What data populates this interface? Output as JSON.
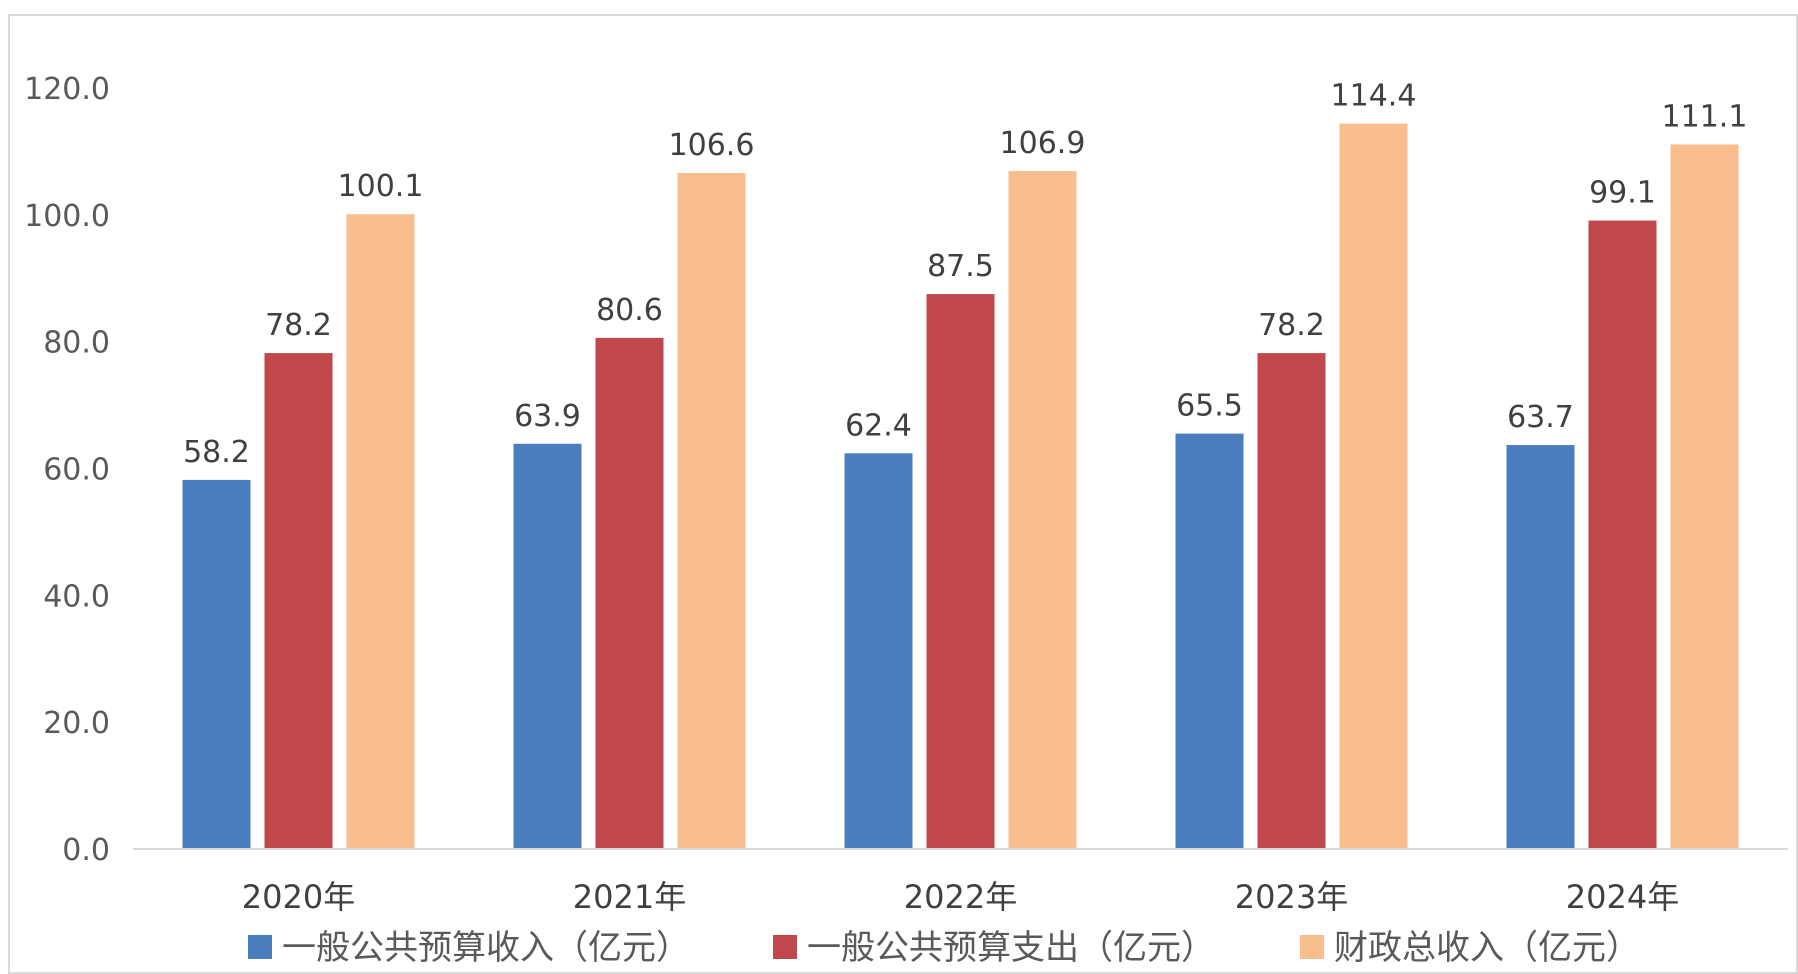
{
  "chart_data": {
    "type": "bar",
    "title": "",
    "xlabel": "",
    "ylabel": "",
    "categories": [
      "2020年",
      "2021年",
      "2022年",
      "2023年",
      "2024年"
    ],
    "series": [
      {
        "name": "一般公共预算收入（亿元）",
        "color": "#4a7ebf",
        "values": [
          58.2,
          63.9,
          62.4,
          65.5,
          63.7
        ]
      },
      {
        "name": "一般公共预算支出（亿元）",
        "color": "#c0474a",
        "values": [
          78.2,
          80.6,
          87.5,
          78.2,
          99.1
        ]
      },
      {
        "name": "财政总收入（亿元）",
        "color": "#f9be8e",
        "values": [
          100.1,
          106.6,
          106.9,
          114.4,
          111.1
        ]
      }
    ],
    "yticks": [
      "0.0",
      "20.0",
      "40.0",
      "60.0",
      "80.0",
      "100.0",
      "120.0"
    ],
    "ylim": [
      0,
      120
    ],
    "grid": false,
    "legend_position": "bottom",
    "data_labels": true
  }
}
